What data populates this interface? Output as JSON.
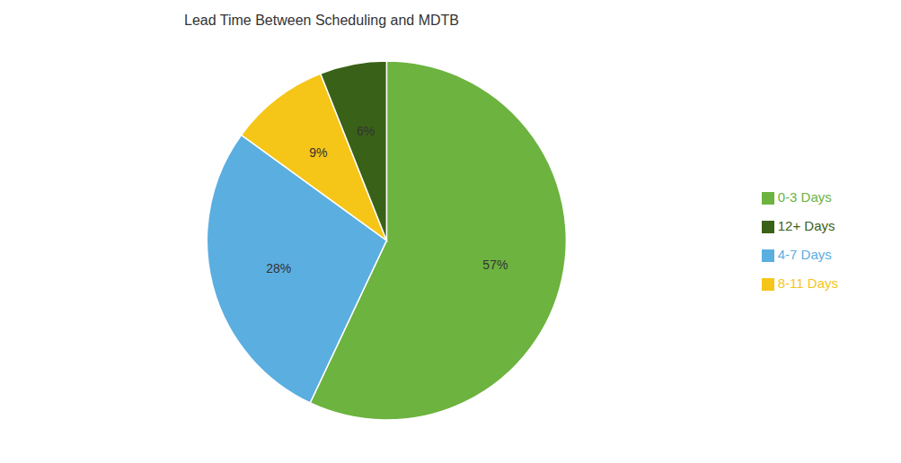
{
  "chart_data": {
    "type": "pie",
    "title": "Lead Time Between Scheduling and MDTB",
    "categories": [
      "0-3 Days",
      "4-7 Days",
      "8-11 Days",
      "12+ Days"
    ],
    "values": [
      57,
      28,
      9,
      6
    ],
    "value_labels": [
      "57%",
      "28%",
      "9%",
      "6%"
    ],
    "colors": [
      "#6db33f",
      "#5baee0",
      "#f5c518",
      "#3a6118"
    ],
    "data_labels": true,
    "legend": "right"
  }
}
